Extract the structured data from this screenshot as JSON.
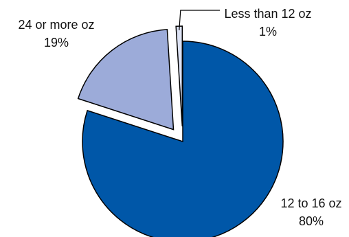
{
  "chart_data": {
    "type": "pie",
    "title": "",
    "slices": [
      {
        "label": "12 to 16 oz",
        "value": 80,
        "value_label": "80%",
        "color": "#0057A8",
        "exploded": false
      },
      {
        "label": "24 or more oz",
        "value": 19,
        "value_label": "19%",
        "color": "#9CABD9",
        "exploded": true
      },
      {
        "label": "Less than 12 oz",
        "value": 1,
        "value_label": "1%",
        "color": "#DDE3F5",
        "exploded": true
      }
    ],
    "start_angle": "12 o'clock",
    "direction": "clockwise",
    "legend": "none",
    "slice_border_color": "#000000",
    "background": "#FFFFFF"
  }
}
